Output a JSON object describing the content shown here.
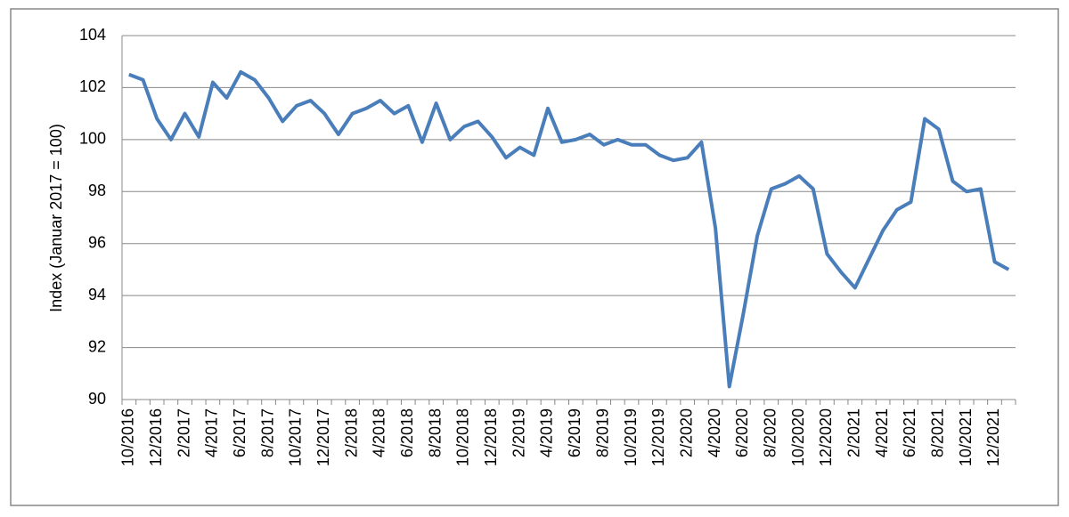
{
  "chart_data": {
    "type": "line",
    "y_label": "Index  (Januar 2017 = 100)",
    "categories": [
      "10/2016",
      null,
      "12/2016",
      null,
      "2/2017",
      null,
      "4/2017",
      null,
      "6/2017",
      null,
      "8/2017",
      null,
      "10/2017",
      null,
      "12/2017",
      null,
      "2/2018",
      null,
      "4/2018",
      null,
      "6/2018",
      null,
      "8/2018",
      null,
      "10/2018",
      null,
      "12/2018",
      null,
      "2/2019",
      null,
      "4/2019",
      null,
      "6/2019",
      null,
      "8/2019",
      null,
      "10/2019",
      null,
      "12/2019",
      null,
      "2/2020",
      null,
      "4/2020",
      null,
      "6/2020",
      null,
      "8/2020",
      null,
      "10/2020",
      null,
      "12/2020",
      null,
      "2/2021",
      null,
      "4/2021",
      null,
      "6/2021",
      null,
      "8/2021",
      null,
      "10/2021",
      null,
      "12/2021",
      null
    ],
    "values": [
      102.5,
      102.3,
      100.8,
      100.0,
      101.0,
      100.1,
      102.2,
      101.6,
      102.6,
      102.3,
      101.6,
      100.7,
      101.3,
      101.5,
      101.0,
      100.2,
      101.0,
      101.2,
      101.5,
      101.0,
      101.3,
      99.9,
      101.4,
      100.0,
      100.5,
      100.7,
      100.1,
      99.3,
      99.7,
      99.4,
      101.2,
      99.9,
      100.0,
      100.2,
      99.8,
      100.0,
      99.8,
      99.8,
      99.4,
      99.2,
      99.3,
      99.9,
      96.6,
      90.5,
      93.3,
      96.3,
      98.1,
      98.3,
      98.6,
      98.1,
      95.6,
      94.9,
      94.3,
      95.4,
      96.5,
      97.3,
      97.6,
      100.8,
      100.4,
      98.4,
      98.0,
      98.1,
      95.3,
      95.0
    ],
    "color": "#4a7ebb",
    "ylim": [
      90,
      104
    ],
    "yticks": [
      90,
      92,
      94,
      96,
      98,
      100,
      102,
      104
    ],
    "grid": true
  }
}
